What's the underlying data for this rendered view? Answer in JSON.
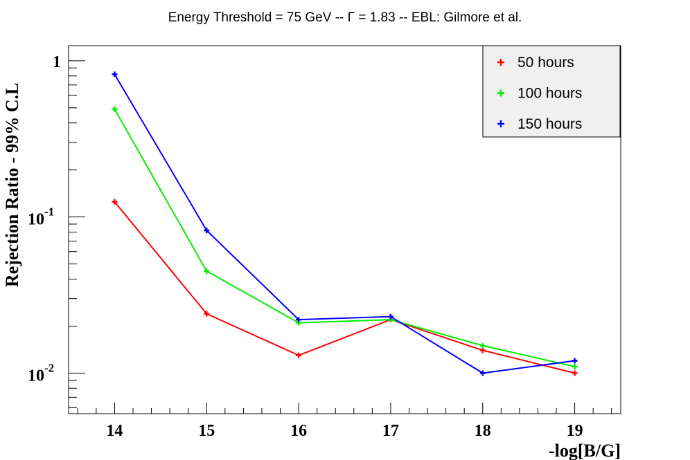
{
  "chart_data": {
    "type": "line",
    "title": "Energy Threshold = 75 GeV -- Γ = 1.83 -- EBL: Gilmore et al.",
    "xlabel": "-log[B/G]",
    "ylabel": "Rejection Ratio - 99% C.L",
    "x": [
      14,
      15,
      16,
      17,
      18,
      19
    ],
    "xlim": [
      13.5,
      19.5
    ],
    "ylim": [
      0.0055,
      1.25
    ],
    "yscale": "log",
    "x_tick_labels": [
      "14",
      "15",
      "16",
      "17",
      "18",
      "19"
    ],
    "y_tick_labels": [
      {
        "base": "1",
        "exp": ""
      },
      {
        "base": "10",
        "exp": "-1"
      },
      {
        "base": "10",
        "exp": "-2"
      }
    ],
    "grid": false,
    "legend_position": "top-right",
    "series": [
      {
        "name": "50 hours",
        "color": "#ff0000",
        "values": [
          0.125,
          0.024,
          0.013,
          0.022,
          0.014,
          0.01
        ]
      },
      {
        "name": "100 hours",
        "color": "#00ee00",
        "values": [
          0.49,
          0.045,
          0.021,
          0.022,
          0.015,
          0.011
        ]
      },
      {
        "name": "150 hours",
        "color": "#0000ff",
        "values": [
          0.82,
          0.082,
          0.022,
          0.023,
          0.01,
          0.012
        ]
      }
    ]
  }
}
